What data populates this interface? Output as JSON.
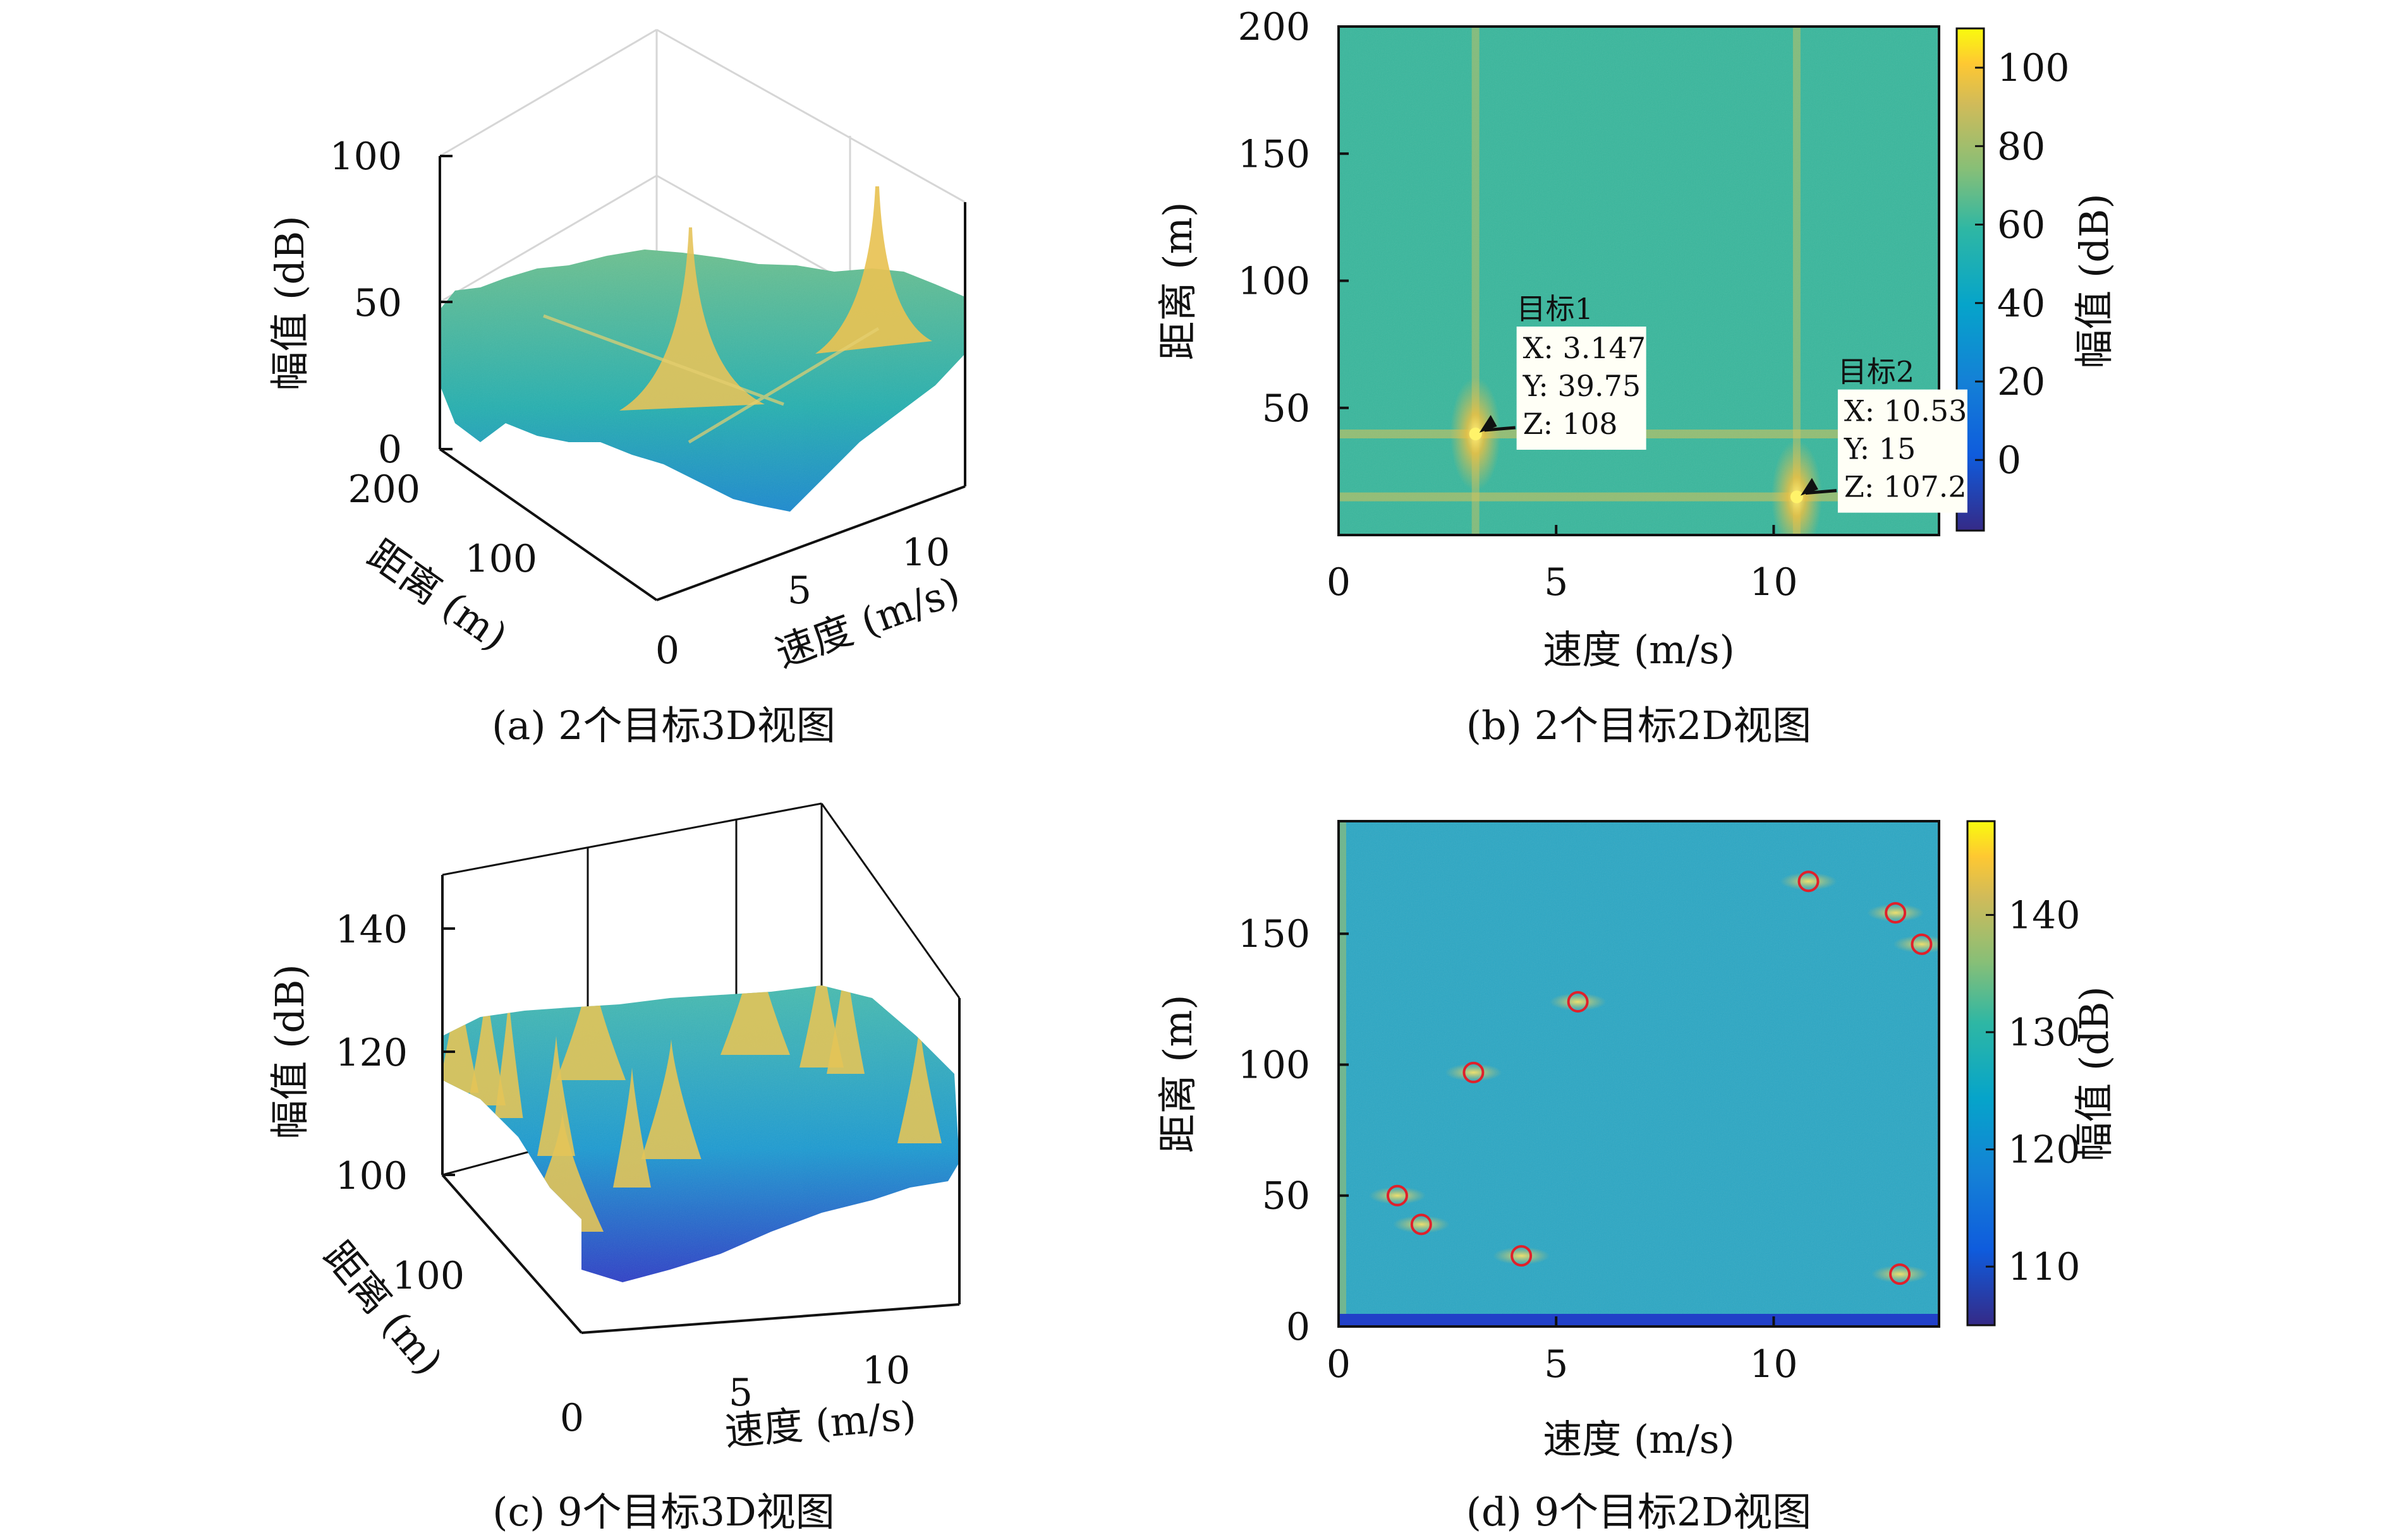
{
  "chart_data": [
    {
      "type": "surface",
      "title": "",
      "caption": "(a) 2个目标3D视图",
      "xlabel": "速度 (m/s)",
      "ylabel": "距离 (m)",
      "zlabel": "幅值 (dB)",
      "xlim": [
        0,
        14
      ],
      "ylim": [
        0,
        200
      ],
      "zlim": [
        0,
        110
      ],
      "xticks": [
        "5",
        "10"
      ],
      "yticks": [
        "0",
        "100",
        "200"
      ],
      "zticks": [
        "0",
        "50",
        "100"
      ],
      "peaks": [
        {
          "x": 3.147,
          "y": 39.75,
          "z": 108
        },
        {
          "x": 10.53,
          "y": 15,
          "z": 107.2
        }
      ],
      "noise_floor": 40,
      "colormap": "parula"
    },
    {
      "type": "heatmap",
      "title": "",
      "caption": "(b) 2个目标2D视图",
      "xlabel": "速度 (m/s)",
      "ylabel": "距离 (m)",
      "colorbar_label": "幅值 (dB)",
      "xlim": [
        0,
        13.8
      ],
      "ylim": [
        0,
        200
      ],
      "clim": [
        -18,
        110
      ],
      "xticks": [
        "0",
        "5",
        "10"
      ],
      "yticks": [
        "50",
        "100",
        "150",
        "200"
      ],
      "colorbar_ticks": [
        "0",
        "20",
        "40",
        "60",
        "80",
        "100"
      ],
      "background_level": 40,
      "targets": [
        {
          "label": "目标1",
          "x": 3.147,
          "y": 39.75,
          "z": 108,
          "x_text": "X: 3.147",
          "y_text": "Y: 39.75",
          "z_text": "Z: 108"
        },
        {
          "label": "目标2",
          "x": 10.53,
          "y": 15,
          "z": 107.2,
          "x_text": "X: 10.53",
          "y_text": "Y: 15",
          "z_text": "Z: 107.2"
        }
      ],
      "colormap": "parula"
    },
    {
      "type": "surface",
      "title": "",
      "caption": "(c) 9个目标3D视图",
      "xlabel": "速度 (m/s)",
      "ylabel": "距离 (m)",
      "zlabel": "幅值 (dB)",
      "xlim": [
        0,
        14
      ],
      "ylim": [
        0,
        190
      ],
      "zlim": [
        100,
        150
      ],
      "xticks": [
        "0",
        "5",
        "10"
      ],
      "yticks": [
        "100"
      ],
      "zticks": [
        "100",
        "120",
        "140"
      ],
      "colormap": "parula"
    },
    {
      "type": "heatmap",
      "title": "",
      "caption": "(d) 9个目标2D视图",
      "xlabel": "速度 (m/s)",
      "ylabel": "距离 (m)",
      "colorbar_label": "幅值 (dB)",
      "xlim": [
        0,
        13.8
      ],
      "ylim": [
        0,
        193
      ],
      "clim": [
        105,
        148
      ],
      "xticks": [
        "0",
        "5",
        "10"
      ],
      "yticks": [
        "0",
        "50",
        "100",
        "150"
      ],
      "colorbar_ticks": [
        "110",
        "120",
        "130",
        "140"
      ],
      "background_level": 124,
      "targets": [
        {
          "x": 1.35,
          "y": 50
        },
        {
          "x": 1.9,
          "y": 39
        },
        {
          "x": 3.1,
          "y": 97
        },
        {
          "x": 4.2,
          "y": 27
        },
        {
          "x": 5.5,
          "y": 124
        },
        {
          "x": 10.8,
          "y": 170
        },
        {
          "x": 12.8,
          "y": 158
        },
        {
          "x": 13.4,
          "y": 146
        },
        {
          "x": 12.9,
          "y": 20
        }
      ],
      "target_marker_color": "#e0202a",
      "colormap": "parula"
    }
  ]
}
